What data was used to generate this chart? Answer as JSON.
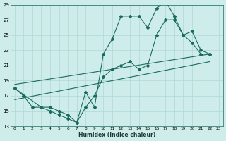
{
  "xlabel": "Humidex (Indice chaleur)",
  "bg_color": "#ceecea",
  "grid_color": "#aed8d4",
  "line_color": "#1a6b5e",
  "xlim": [
    -0.5,
    23.5
  ],
  "ylim": [
    13,
    29
  ],
  "xticks": [
    0,
    1,
    2,
    3,
    4,
    5,
    6,
    7,
    8,
    9,
    10,
    11,
    12,
    13,
    14,
    15,
    16,
    17,
    18,
    19,
    20,
    21,
    22,
    23
  ],
  "yticks": [
    13,
    15,
    17,
    19,
    21,
    23,
    25,
    27,
    29
  ],
  "line1_x": [
    0,
    1,
    2,
    3,
    4,
    5,
    6,
    7,
    8,
    9,
    10,
    11,
    12,
    13,
    14,
    15,
    16,
    17,
    18,
    19,
    20,
    21,
    22
  ],
  "line1_y": [
    18,
    17,
    15.5,
    15.5,
    15,
    14.5,
    14,
    13.5,
    17.5,
    15.5,
    22.5,
    24.5,
    27.5,
    27.5,
    27.5,
    26,
    28.5,
    29.5,
    27.5,
    25,
    25.5,
    23,
    22.5
  ],
  "line2_x": [
    0,
    3,
    4,
    5,
    6,
    7,
    8,
    9,
    10,
    11,
    12,
    13,
    14,
    15,
    16,
    17,
    18,
    19,
    20,
    21,
    22
  ],
  "line2_y": [
    18,
    15.5,
    15.5,
    15,
    14.5,
    13.5,
    15.5,
    17,
    19.5,
    20.5,
    21,
    21.5,
    20.5,
    21,
    25,
    27,
    27,
    25,
    24,
    22.5,
    22.5
  ],
  "trend1_x": [
    0,
    22
  ],
  "trend1_y": [
    18.5,
    22.5
  ],
  "trend2_x": [
    0,
    22
  ],
  "trend2_y": [
    16.5,
    21.5
  ]
}
